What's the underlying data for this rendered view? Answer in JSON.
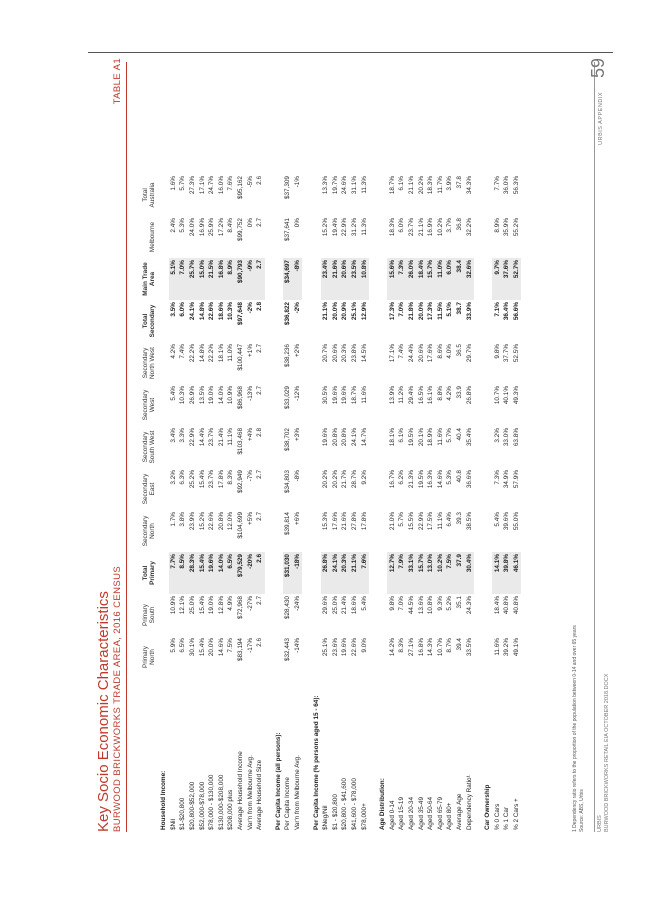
{
  "header": {
    "title": "Key Socio Economic Characteristics",
    "subtitle": "BURWOOD BRICKWORKS TRADE AREA, 2016 CENSUS",
    "table_label": "TABLE A1"
  },
  "columns": [
    "Primary North",
    "Primary South",
    "Total Primary",
    "Secondary North",
    "Secondary East",
    "Secondary South West",
    "Secondary West",
    "Secondary North West",
    "Total Secondary",
    "Main Trade Area",
    "Melbourne",
    "Total Australia"
  ],
  "column_lines": [
    [
      "Primary",
      "North"
    ],
    [
      "Primary",
      "South"
    ],
    [
      "Total",
      "Primary"
    ],
    [
      "Secondary",
      "North"
    ],
    [
      "Secondary",
      "East"
    ],
    [
      "Secondary",
      "South West"
    ],
    [
      "Secondary",
      "West"
    ],
    [
      "Secondary",
      "North West"
    ],
    [
      "Total",
      "Secondary"
    ],
    [
      "Main Trade",
      "Area"
    ],
    [
      "Melbourne",
      ""
    ],
    [
      "Total",
      "Australia"
    ]
  ],
  "rows": [
    {
      "type": "section",
      "label": "Household Income:"
    },
    {
      "type": "data",
      "label": "$Nil",
      "values": [
        "5.9%",
        "10.9%",
        "7.7%",
        "1.7%",
        "3.2%",
        "3.4%",
        "5.4%",
        "4.2%",
        "3.5%",
        "5.1%",
        "2.4%",
        "1.6%"
      ]
    },
    {
      "type": "data",
      "label": "$1-$20,800",
      "values": [
        "6.5%",
        "12.1%",
        "8.5%",
        "3.8%",
        "6.3%",
        "3.3%",
        "10.3%",
        "7.4%",
        "6.0%",
        "7.0%",
        "5.3%",
        "5.7%"
      ]
    },
    {
      "type": "data",
      "label": "$20,800-$52,000",
      "values": [
        "30.1%",
        "25.0%",
        "28.3%",
        "23.9%",
        "25.2%",
        "22.9%",
        "26.9%",
        "22.2%",
        "24.1%",
        "25.7%",
        "24.0%",
        "27.3%"
      ]
    },
    {
      "type": "data",
      "label": "$52,000-$78,000",
      "values": [
        "15.4%",
        "15.4%",
        "15.4%",
        "15.2%",
        "15.4%",
        "14.4%",
        "13.5%",
        "14.8%",
        "14.8%",
        "15.0%",
        "16.9%",
        "17.1%"
      ]
    },
    {
      "type": "data",
      "label": "$78,000 - $130,000",
      "values": [
        "20.0%",
        "19.0%",
        "19.6%",
        "22.6%",
        "23.7%",
        "23.7%",
        "19.0%",
        "22.2%",
        "22.6%",
        "21.5%",
        "25.9%",
        "24.7%"
      ]
    },
    {
      "type": "data",
      "label": "$130,000-$208,000",
      "values": [
        "14.6%",
        "12.8%",
        "14.0%",
        "20.8%",
        "17.8%",
        "21.4%",
        "14.0%",
        "18.1%",
        "18.6%",
        "16.8%",
        "17.2%",
        "16.0%"
      ]
    },
    {
      "type": "data",
      "label": "$208,000 plus",
      "values": [
        "7.5%",
        "4.9%",
        "6.5%",
        "12.0%",
        "8.3%",
        "11.1%",
        "10.9%",
        "11.0%",
        "10.3%",
        "8.9%",
        "8.4%",
        "7.6%"
      ]
    },
    {
      "type": "data",
      "label": "Average Household Income",
      "values": [
        "$83,194",
        "$72,968",
        "$79,529",
        "$104,699",
        "$92,949",
        "$103,468",
        "$86,968",
        "$100,447",
        "$97,648",
        "$90,793",
        "$99,752",
        "$95,162"
      ]
    },
    {
      "type": "data",
      "label": "Var'n from Melbourne Avg.",
      "values": [
        "-17%",
        "-27%",
        "-20%",
        "+5%",
        "-7%",
        "+4%",
        "-13%",
        "+1%",
        "-2%",
        "-9%",
        "0%",
        "-5%"
      ]
    },
    {
      "type": "data",
      "label": "Average Household Size",
      "values": [
        "2.6",
        "2.7",
        "2.6",
        "2.7",
        "2.7",
        "2.8",
        "2.7",
        "2.7",
        "2.8",
        "2.7",
        "2.7",
        "2.6"
      ]
    },
    {
      "type": "section",
      "label": "Per Capita Income (all persons):"
    },
    {
      "type": "data",
      "label": "Per Capita Income",
      "values": [
        "$32,443",
        "$28,430",
        "$31,030",
        "$39,814",
        "$34,803",
        "$38,702",
        "$33,029",
        "$38,236",
        "$36,822",
        "$34,697",
        "$37,641",
        "$37,309"
      ]
    },
    {
      "type": "data",
      "label": "Var'n from Melbourne Avg.",
      "values": [
        "-14%",
        "-24%",
        "-18%",
        "+6%",
        "-8%",
        "+3%",
        "-12%",
        "+2%",
        "-2%",
        "-8%",
        "0%",
        "-1%"
      ]
    },
    {
      "type": "section",
      "label": "Per Capita Income (% persons aged 15 - 64):"
    },
    {
      "type": "data",
      "label": "$Neg/Nil",
      "values": [
        "25.1%",
        "29.6%",
        "26.8%",
        "15.3%",
        "20.2%",
        "19.6%",
        "30.5%",
        "20.7%",
        "21.1%",
        "23.4%",
        "15.2%",
        "13.3%"
      ]
    },
    {
      "type": "data",
      "label": "$1 - $20,800",
      "values": [
        "23.6%",
        "25.0%",
        "24.1%",
        "17.6%",
        "20.2%",
        "20.8%",
        "19.6%",
        "20.6%",
        "20.0%",
        "21.6%",
        "19.4%",
        "19.7%"
      ]
    },
    {
      "type": "data",
      "label": "$20,800 - $41,600",
      "values": [
        "19.6%",
        "21.4%",
        "20.3%",
        "21.6%",
        "21.7%",
        "20.8%",
        "19.6%",
        "20.3%",
        "20.9%",
        "20.6%",
        "22.9%",
        "24.6%"
      ]
    },
    {
      "type": "data",
      "label": "$41,600 - $78,000",
      "values": [
        "22.6%",
        "18.6%",
        "21.1%",
        "27.8%",
        "28.7%",
        "24.1%",
        "18.7%",
        "23.8%",
        "25.1%",
        "23.5%",
        "31.2%",
        "31.1%"
      ]
    },
    {
      "type": "data",
      "label": "$78,000+",
      "values": [
        "9.0%",
        "5.4%",
        "7.6%",
        "17.8%",
        "9.2%",
        "14.7%",
        "11.6%",
        "14.5%",
        "12.9%",
        "10.8%",
        "11.3%",
        "11.3%"
      ]
    },
    {
      "type": "section",
      "label": "Age Distribution:"
    },
    {
      "type": "data",
      "label": "Aged 0-14",
      "values": [
        "14.2%",
        "9.8%",
        "12.7%",
        "21.0%",
        "16.7%",
        "18.1%",
        "13.9%",
        "17.1%",
        "17.3%",
        "15.6%",
        "18.3%",
        "18.7%"
      ]
    },
    {
      "type": "data",
      "label": "Aged 15-19",
      "values": [
        "8.3%",
        "7.0%",
        "7.9%",
        "5.7%",
        "6.2%",
        "6.1%",
        "11.2%",
        "7.4%",
        "7.0%",
        "7.3%",
        "6.0%",
        "6.1%"
      ]
    },
    {
      "type": "data",
      "label": "Aged 20-34",
      "values": [
        "27.1%",
        "44.5%",
        "33.1%",
        "15.5%",
        "21.3%",
        "19.5%",
        "29.4%",
        "24.4%",
        "21.8%",
        "26.0%",
        "23.7%",
        "21.1%"
      ]
    },
    {
      "type": "data",
      "label": "Aged 35-49",
      "values": [
        "16.8%",
        "13.6%",
        "15.7%",
        "22.9%",
        "19.5%",
        "20.1%",
        "16.5%",
        "20.6%",
        "20.0%",
        "18.4%",
        "21.1%",
        "20.2%"
      ]
    },
    {
      "type": "data",
      "label": "Aged 50-64",
      "values": [
        "14.3%",
        "10.8%",
        "13.0%",
        "17.5%",
        "16.3%",
        "18.9%",
        "16.1%",
        "17.6%",
        "17.3%",
        "15.7%",
        "16.9%",
        "18.3%"
      ]
    },
    {
      "type": "data",
      "label": "Aged 65-79",
      "values": [
        "10.7%",
        "9.3%",
        "10.2%",
        "11.1%",
        "14.6%",
        "11.6%",
        "8.8%",
        "8.6%",
        "11.5%",
        "11.0%",
        "10.2%",
        "11.7%"
      ]
    },
    {
      "type": "data",
      "label": "Aged 80+",
      "values": [
        "8.7%",
        "5.2%",
        "7.5%",
        "6.4%",
        "5.3%",
        "5.7%",
        "4.2%",
        "4.0%",
        "5.1%",
        "6.0%",
        "3.7%",
        "3.9%"
      ]
    },
    {
      "type": "data",
      "label": "Average Age",
      "values": [
        "39.4",
        "35.1",
        "37.9",
        "39.3",
        "40.8",
        "40.4",
        "33.9",
        "36.5",
        "38.7",
        "38.4",
        "36.8",
        "37.8"
      ]
    },
    {
      "type": "data",
      "label": "Dependency Ratio¹",
      "values": [
        "33.5%",
        "24.3%",
        "30.4%",
        "38.5%",
        "36.6%",
        "35.4%",
        "26.8%",
        "29.7%",
        "33.9%",
        "32.6%",
        "32.2%",
        "34.3%"
      ]
    },
    {
      "type": "section",
      "label": "Car Ownership"
    },
    {
      "type": "data",
      "label": "% 0 Cars",
      "values": [
        "11.6%",
        "18.4%",
        "14.1%",
        "5.4%",
        "7.3%",
        "3.2%",
        "10.7%",
        "9.8%",
        "7.1%",
        "9.7%",
        "8.9%",
        "7.7%"
      ]
    },
    {
      "type": "data",
      "label": "% 1 Car",
      "values": [
        "39.2%",
        "40.8%",
        "39.8%",
        "39.6%",
        "34.9%",
        "33.0%",
        "40.1%",
        "37.7%",
        "36.4%",
        "37.6%",
        "35.9%",
        "36.0%"
      ]
    },
    {
      "type": "data",
      "label": "% 2 Cars +",
      "values": [
        "49.1%",
        "40.8%",
        "46.1%",
        "55.0%",
        "57.9%",
        "63.8%",
        "49.3%",
        "52.5%",
        "56.6%",
        "52.7%",
        "55.2%",
        "56.3%"
      ]
    }
  ],
  "bold_columns": [
    2,
    8,
    9
  ],
  "shaded_columns": [
    2,
    9
  ],
  "footnotes": [
    "1 Dependency ratio refers to the proportion of the population between 0-14 and over 65 years",
    "Source: ABS, Urbis"
  ],
  "footer": {
    "company": "URBIS",
    "document": "BURWOOD BRICKWORKS RETAIL EIA OCTOBER 2018.DOCX",
    "appendix_label": "URBIS APPENDIX",
    "page_number": "59"
  }
}
